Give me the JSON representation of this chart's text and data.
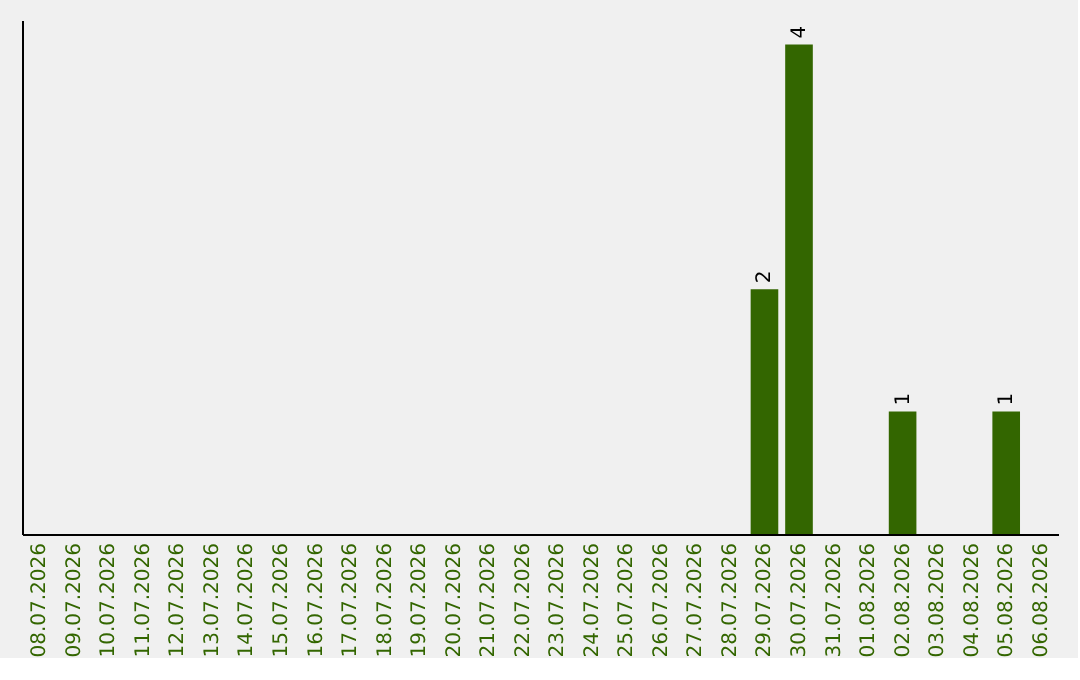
{
  "chart_data": {
    "type": "bar",
    "categories": [
      "08.07.2026",
      "09.07.2026",
      "10.07.2026",
      "11.07.2026",
      "12.07.2026",
      "13.07.2026",
      "14.07.2026",
      "15.07.2026",
      "16.07.2026",
      "17.07.2026",
      "18.07.2026",
      "19.07.2026",
      "20.07.2026",
      "21.07.2026",
      "22.07.2026",
      "23.07.2026",
      "24.07.2026",
      "25.07.2026",
      "26.07.2026",
      "27.07.2026",
      "28.07.2026",
      "29.07.2026",
      "30.07.2026",
      "31.07.2026",
      "01.08.2026",
      "02.08.2026",
      "03.08.2026",
      "04.08.2026",
      "05.08.2026",
      "06.08.2026"
    ],
    "values": [
      null,
      null,
      null,
      null,
      null,
      null,
      null,
      null,
      null,
      null,
      null,
      null,
      null,
      null,
      null,
      null,
      null,
      null,
      null,
      null,
      null,
      2,
      4,
      null,
      null,
      1,
      null,
      null,
      1,
      null
    ],
    "value_labels": [
      null,
      null,
      null,
      null,
      null,
      null,
      null,
      null,
      null,
      null,
      null,
      null,
      null,
      null,
      null,
      null,
      null,
      null,
      null,
      null,
      null,
      "2",
      "4",
      null,
      null,
      "1",
      null,
      null,
      "1",
      null
    ],
    "color": "#336600",
    "ylim": [
      0,
      4.2
    ],
    "tick_labels": "x",
    "grid": false
  }
}
